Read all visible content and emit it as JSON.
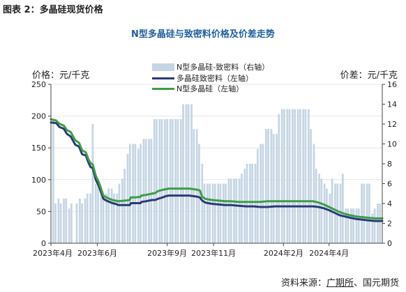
{
  "caption": "图表 2：多晶硅现货价格",
  "chart_data": {
    "type": "bar+line",
    "title": "N型多晶硅与致密料价格及价差走势",
    "ylabel_left": "价格：元/千克",
    "ylabel_right": "价差：元/千克",
    "ylim_left": [
      0,
      250
    ],
    "yticks_left": [
      "0",
      "50",
      "100",
      "150",
      "200",
      "250"
    ],
    "ylim_right": [
      0,
      16
    ],
    "yticks_right": [
      "0",
      "2",
      "4",
      "6",
      "8",
      "10",
      "12",
      "14",
      "16"
    ],
    "x_range": [
      "2023-04-01",
      "2024-06-10"
    ],
    "x_tick_labels": [
      "2023年4月",
      "2023年6月",
      "2023年9月",
      "2023年11月",
      "2024年2月",
      "2024年4月"
    ],
    "x_tick_dates": [
      "2023-04-01",
      "2023-06-01",
      "2023-09-01",
      "2023-11-01",
      "2024-02-01",
      "2024-04-01"
    ],
    "legend_position": "top-center",
    "series": [
      {
        "name": "N型多晶硅-致密料（右轴）",
        "kind": "bar",
        "axis": "right",
        "color": "#c5d5e4",
        "points": [
          [
            "2023-04-04",
            12.5
          ],
          [
            "2023-04-07",
            4.0
          ],
          [
            "2023-04-11",
            4.5
          ],
          [
            "2023-04-14",
            4.0
          ],
          [
            "2023-04-18",
            4.5
          ],
          [
            "2023-04-21",
            4.5
          ],
          [
            "2023-04-25",
            3.5
          ],
          [
            "2023-04-28",
            4.0
          ],
          [
            "2023-05-05",
            4.0
          ],
          [
            "2023-05-09",
            4.5
          ],
          [
            "2023-05-12",
            4.0
          ],
          [
            "2023-05-16",
            4.5
          ],
          [
            "2023-05-19",
            5.0
          ],
          [
            "2023-05-23",
            5.0
          ],
          [
            "2023-05-26",
            12.0
          ],
          [
            "2023-05-30",
            6.0
          ],
          [
            "2023-06-02",
            6.5
          ],
          [
            "2023-06-06",
            5.0
          ],
          [
            "2023-06-09",
            5.0
          ],
          [
            "2023-06-13",
            5.0
          ],
          [
            "2023-06-16",
            5.5
          ],
          [
            "2023-06-20",
            5.5
          ],
          [
            "2023-06-23",
            5.0
          ],
          [
            "2023-06-27",
            5.0
          ],
          [
            "2023-06-30",
            6.0
          ],
          [
            "2023-07-04",
            6.5
          ],
          [
            "2023-07-07",
            7.5
          ],
          [
            "2023-07-11",
            9.0
          ],
          [
            "2023-07-14",
            10.0
          ],
          [
            "2023-07-18",
            10.0
          ],
          [
            "2023-07-21",
            10.0
          ],
          [
            "2023-07-25",
            9.5
          ],
          [
            "2023-07-28",
            10.0
          ],
          [
            "2023-08-01",
            10.5
          ],
          [
            "2023-08-04",
            10.5
          ],
          [
            "2023-08-08",
            10.5
          ],
          [
            "2023-08-11",
            10.5
          ],
          [
            "2023-08-15",
            12.5
          ],
          [
            "2023-08-18",
            12.5
          ],
          [
            "2023-08-22",
            12.5
          ],
          [
            "2023-08-25",
            12.5
          ],
          [
            "2023-08-29",
            12.5
          ],
          [
            "2023-09-01",
            12.5
          ],
          [
            "2023-09-05",
            12.5
          ],
          [
            "2023-09-08",
            12.5
          ],
          [
            "2023-09-12",
            12.5
          ],
          [
            "2023-09-15",
            12.5
          ],
          [
            "2023-09-19",
            12.5
          ],
          [
            "2023-09-22",
            14.0
          ],
          [
            "2023-09-26",
            14.0
          ],
          [
            "2023-09-29",
            14.0
          ],
          [
            "2023-10-03",
            14.0
          ],
          [
            "2023-10-06",
            11.5
          ],
          [
            "2023-10-10",
            11.5
          ],
          [
            "2023-10-13",
            10.0
          ],
          [
            "2023-10-17",
            8.0
          ],
          [
            "2023-10-20",
            6.0
          ],
          [
            "2023-10-24",
            6.0
          ],
          [
            "2023-10-27",
            6.0
          ],
          [
            "2023-10-31",
            6.0
          ],
          [
            "2023-11-03",
            6.0
          ],
          [
            "2023-11-07",
            6.0
          ],
          [
            "2023-11-10",
            6.0
          ],
          [
            "2023-11-14",
            6.0
          ],
          [
            "2023-11-17",
            6.0
          ],
          [
            "2023-11-21",
            6.5
          ],
          [
            "2023-11-24",
            6.5
          ],
          [
            "2023-11-28",
            6.5
          ],
          [
            "2023-12-01",
            6.5
          ],
          [
            "2023-12-05",
            6.5
          ],
          [
            "2023-12-08",
            7.0
          ],
          [
            "2023-12-12",
            7.5
          ],
          [
            "2023-12-15",
            8.0
          ],
          [
            "2023-12-19",
            8.0
          ],
          [
            "2023-12-22",
            8.0
          ],
          [
            "2023-12-26",
            8.0
          ],
          [
            "2023-12-29",
            9.5
          ],
          [
            "2024-01-02",
            10.0
          ],
          [
            "2024-01-05",
            10.0
          ],
          [
            "2024-01-09",
            11.5
          ],
          [
            "2024-01-12",
            11.5
          ],
          [
            "2024-01-16",
            11.5
          ],
          [
            "2024-01-19",
            11.0
          ],
          [
            "2024-01-23",
            11.0
          ],
          [
            "2024-01-26",
            13.0
          ],
          [
            "2024-01-30",
            13.5
          ],
          [
            "2024-02-02",
            13.5
          ],
          [
            "2024-02-06",
            13.5
          ],
          [
            "2024-02-09",
            13.5
          ],
          [
            "2024-02-13",
            13.5
          ],
          [
            "2024-02-16",
            13.5
          ],
          [
            "2024-02-20",
            13.5
          ],
          [
            "2024-02-23",
            13.5
          ],
          [
            "2024-02-27",
            13.5
          ],
          [
            "2024-03-01",
            13.5
          ],
          [
            "2024-03-05",
            13.5
          ],
          [
            "2024-03-08",
            11.5
          ],
          [
            "2024-03-12",
            10.0
          ],
          [
            "2024-03-15",
            7.5
          ],
          [
            "2024-03-19",
            7.0
          ],
          [
            "2024-03-22",
            6.5
          ],
          [
            "2024-03-26",
            6.0
          ],
          [
            "2024-03-29",
            5.5
          ],
          [
            "2024-04-02",
            5.0
          ],
          [
            "2024-04-05",
            6.5
          ],
          [
            "2024-04-09",
            6.0
          ],
          [
            "2024-04-12",
            6.0
          ],
          [
            "2024-04-16",
            6.0
          ],
          [
            "2024-04-19",
            7.0
          ],
          [
            "2024-04-23",
            3.5
          ],
          [
            "2024-04-26",
            3.5
          ],
          [
            "2024-04-30",
            3.5
          ],
          [
            "2024-05-03",
            3.5
          ],
          [
            "2024-05-07",
            3.5
          ],
          [
            "2024-05-10",
            3.5
          ],
          [
            "2024-05-14",
            6.0
          ],
          [
            "2024-05-17",
            6.0
          ],
          [
            "2024-05-21",
            6.0
          ],
          [
            "2024-05-24",
            6.0
          ],
          [
            "2024-05-28",
            3.0
          ],
          [
            "2024-05-31",
            3.5
          ],
          [
            "2024-06-04",
            4.0
          ],
          [
            "2024-06-07",
            4.0
          ]
        ]
      },
      {
        "name": "多晶硅致密料（左轴）",
        "kind": "line",
        "axis": "left",
        "color": "#2b3a75",
        "points": [
          [
            "2023-04-01",
            190
          ],
          [
            "2023-04-08",
            189
          ],
          [
            "2023-04-12",
            183
          ],
          [
            "2023-04-18",
            180
          ],
          [
            "2023-04-22",
            172
          ],
          [
            "2023-04-27",
            168
          ],
          [
            "2023-05-03",
            155
          ],
          [
            "2023-05-08",
            152
          ],
          [
            "2023-05-12",
            140
          ],
          [
            "2023-05-17",
            138
          ],
          [
            "2023-05-20",
            128
          ],
          [
            "2023-05-23",
            120
          ],
          [
            "2023-05-26",
            118
          ],
          [
            "2023-05-30",
            100
          ],
          [
            "2023-06-03",
            90
          ],
          [
            "2023-06-06",
            80
          ],
          [
            "2023-06-09",
            70
          ],
          [
            "2023-06-13",
            67
          ],
          [
            "2023-06-17",
            65
          ],
          [
            "2023-06-21",
            63
          ],
          [
            "2023-06-25",
            62
          ],
          [
            "2023-06-29",
            60
          ],
          [
            "2023-07-07",
            60
          ],
          [
            "2023-07-14",
            60
          ],
          [
            "2023-07-15",
            63
          ],
          [
            "2023-07-21",
            63
          ],
          [
            "2023-07-28",
            63
          ],
          [
            "2023-07-29",
            65
          ],
          [
            "2023-08-04",
            66
          ],
          [
            "2023-08-08",
            67
          ],
          [
            "2023-08-12",
            68
          ],
          [
            "2023-08-16",
            68
          ],
          [
            "2023-08-20",
            70
          ],
          [
            "2023-08-26",
            72
          ],
          [
            "2023-08-30",
            74
          ],
          [
            "2023-09-03",
            75
          ],
          [
            "2023-09-17",
            75
          ],
          [
            "2023-09-30",
            75
          ],
          [
            "2023-10-06",
            74
          ],
          [
            "2023-10-11",
            73
          ],
          [
            "2023-10-14",
            72
          ],
          [
            "2023-10-17",
            67
          ],
          [
            "2023-10-21",
            64
          ],
          [
            "2023-10-25",
            63
          ],
          [
            "2023-10-30",
            62
          ],
          [
            "2023-11-08",
            61
          ],
          [
            "2023-11-16",
            60
          ],
          [
            "2023-11-24",
            60
          ],
          [
            "2023-12-04",
            59
          ],
          [
            "2023-12-14",
            58
          ],
          [
            "2023-12-24",
            58
          ],
          [
            "2024-01-01",
            57
          ],
          [
            "2024-01-11",
            57
          ],
          [
            "2024-01-21",
            58
          ],
          [
            "2024-02-04",
            58
          ],
          [
            "2024-02-18",
            58
          ],
          [
            "2024-03-01",
            58
          ],
          [
            "2024-03-11",
            58
          ],
          [
            "2024-03-18",
            57
          ],
          [
            "2024-03-25",
            55
          ],
          [
            "2024-04-01",
            52
          ],
          [
            "2024-04-08",
            48
          ],
          [
            "2024-04-15",
            44
          ],
          [
            "2024-04-22",
            42
          ],
          [
            "2024-04-29",
            40
          ],
          [
            "2024-05-07",
            38
          ],
          [
            "2024-05-15",
            37
          ],
          [
            "2024-05-23",
            36
          ],
          [
            "2024-06-01",
            35
          ],
          [
            "2024-06-10",
            35
          ]
        ]
      },
      {
        "name": "N型多晶硅（左轴）",
        "kind": "line",
        "axis": "left",
        "color": "#3c9d45",
        "points": [
          [
            "2023-04-01",
            195
          ],
          [
            "2023-04-08",
            193
          ],
          [
            "2023-04-12",
            188
          ],
          [
            "2023-04-18",
            185
          ],
          [
            "2023-04-22",
            178
          ],
          [
            "2023-04-27",
            175
          ],
          [
            "2023-05-03",
            162
          ],
          [
            "2023-05-08",
            158
          ],
          [
            "2023-05-12",
            146
          ],
          [
            "2023-05-17",
            143
          ],
          [
            "2023-05-20",
            133
          ],
          [
            "2023-05-23",
            126
          ],
          [
            "2023-05-26",
            124
          ],
          [
            "2023-05-30",
            106
          ],
          [
            "2023-06-03",
            96
          ],
          [
            "2023-06-06",
            86
          ],
          [
            "2023-06-09",
            75
          ],
          [
            "2023-06-13",
            72
          ],
          [
            "2023-06-17",
            70
          ],
          [
            "2023-06-21",
            68
          ],
          [
            "2023-06-25",
            67
          ],
          [
            "2023-06-29",
            66
          ],
          [
            "2023-07-07",
            67
          ],
          [
            "2023-07-14",
            68
          ],
          [
            "2023-07-15",
            72
          ],
          [
            "2023-07-21",
            72
          ],
          [
            "2023-07-28",
            73
          ],
          [
            "2023-07-29",
            75
          ],
          [
            "2023-08-04",
            76
          ],
          [
            "2023-08-08",
            77
          ],
          [
            "2023-08-12",
            78
          ],
          [
            "2023-08-16",
            79
          ],
          [
            "2023-08-20",
            82
          ],
          [
            "2023-08-26",
            84
          ],
          [
            "2023-08-30",
            85
          ],
          [
            "2023-09-03",
            86
          ],
          [
            "2023-09-17",
            86
          ],
          [
            "2023-09-30",
            86
          ],
          [
            "2023-10-06",
            85
          ],
          [
            "2023-10-11",
            84
          ],
          [
            "2023-10-14",
            83
          ],
          [
            "2023-10-17",
            73
          ],
          [
            "2023-10-21",
            70
          ],
          [
            "2023-10-25",
            69
          ],
          [
            "2023-10-30",
            68
          ],
          [
            "2023-11-08",
            67
          ],
          [
            "2023-11-16",
            66
          ],
          [
            "2023-11-24",
            66
          ],
          [
            "2023-12-04",
            65
          ],
          [
            "2023-12-14",
            65
          ],
          [
            "2023-12-24",
            65
          ],
          [
            "2024-01-01",
            65
          ],
          [
            "2024-01-11",
            66
          ],
          [
            "2024-01-21",
            66
          ],
          [
            "2024-02-04",
            66
          ],
          [
            "2024-02-18",
            66
          ],
          [
            "2024-03-01",
            66
          ],
          [
            "2024-03-11",
            66
          ],
          [
            "2024-03-18",
            64
          ],
          [
            "2024-03-25",
            61
          ],
          [
            "2024-04-01",
            57
          ],
          [
            "2024-04-08",
            53
          ],
          [
            "2024-04-15",
            49
          ],
          [
            "2024-04-22",
            46
          ],
          [
            "2024-04-29",
            44
          ],
          [
            "2024-05-07",
            42
          ],
          [
            "2024-05-15",
            41
          ],
          [
            "2024-05-23",
            40
          ],
          [
            "2024-06-01",
            39
          ],
          [
            "2024-06-10",
            39
          ]
        ]
      }
    ]
  },
  "footer": {
    "source_prefix": "资料来源：",
    "source_link": "广期所",
    "source_suffix": "、国元期货"
  }
}
